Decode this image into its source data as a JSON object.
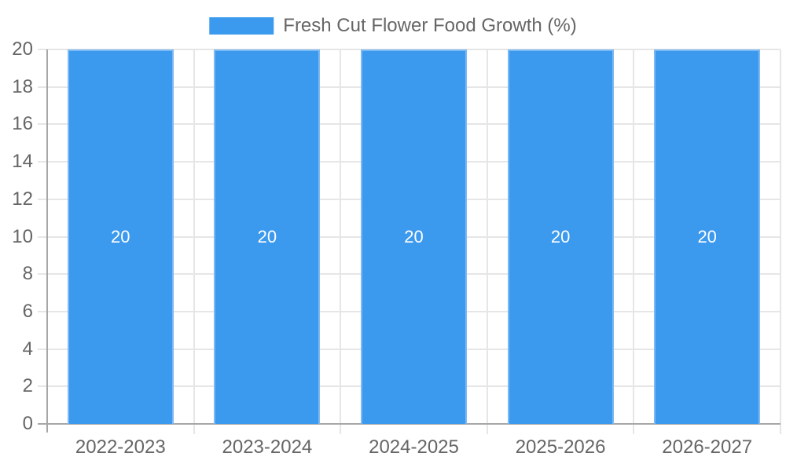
{
  "chart_data": {
    "type": "bar",
    "title": "Fresh Cut Flower Food Growth (%)",
    "categories": [
      "2022-2023",
      "2023-2024",
      "2024-2025",
      "2025-2026",
      "2026-2027"
    ],
    "series": [
      {
        "name": "Fresh Cut Flower Food Growth (%)",
        "values": [
          20,
          20,
          20,
          20,
          20
        ]
      }
    ],
    "bar_value_labels": [
      "20",
      "20",
      "20",
      "20",
      "20"
    ],
    "xlabel": "",
    "ylabel": "",
    "ylim": [
      0,
      20
    ],
    "ytick_step": 2,
    "yticks": [
      0,
      2,
      4,
      6,
      8,
      10,
      12,
      14,
      16,
      18,
      20
    ],
    "grid": true,
    "legend_position": "top",
    "colors": {
      "bar": "#3B99EE",
      "bar_border": "#7DB9F3",
      "bar_label": "#FFFFFF",
      "grid": "#E6E6E6",
      "axis": "#A7A7A7",
      "text": "#666666",
      "background": "#FFFFFF"
    }
  }
}
